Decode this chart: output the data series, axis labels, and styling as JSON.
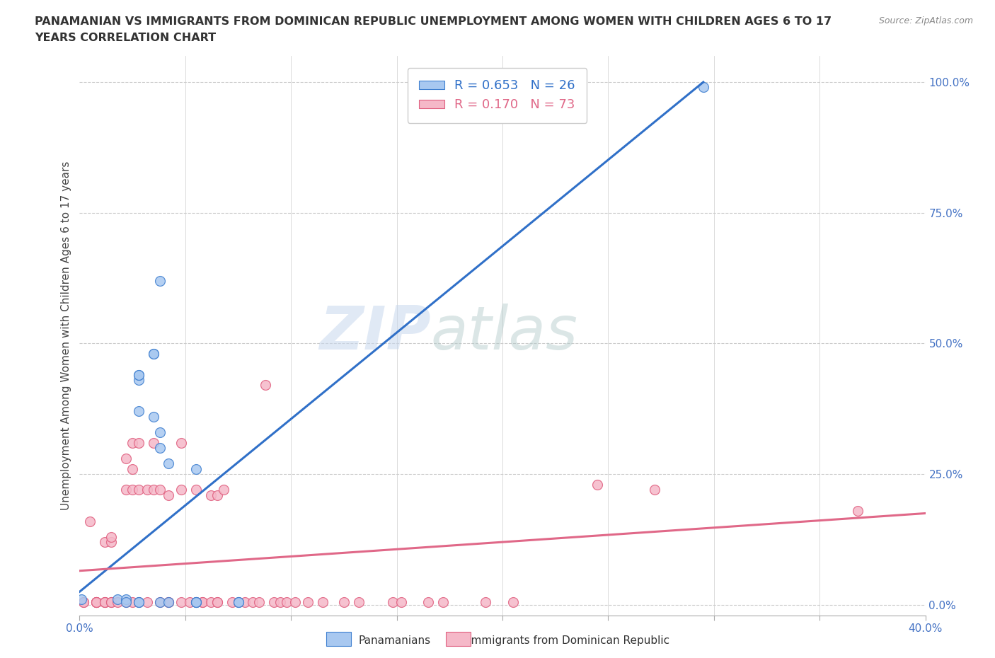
{
  "title_line1": "PANAMANIAN VS IMMIGRANTS FROM DOMINICAN REPUBLIC UNEMPLOYMENT AMONG WOMEN WITH CHILDREN AGES 6 TO 17",
  "title_line2": "YEARS CORRELATION CHART",
  "source": "Source: ZipAtlas.com",
  "ylabel": "Unemployment Among Women with Children Ages 6 to 17 years",
  "legend_blue_r": "0.653",
  "legend_blue_n": "26",
  "legend_pink_r": "0.170",
  "legend_pink_n": "73",
  "blue_scatter_x": [
    0.001,
    0.018,
    0.022,
    0.022,
    0.028,
    0.028,
    0.028,
    0.028,
    0.028,
    0.028,
    0.035,
    0.035,
    0.035,
    0.038,
    0.038,
    0.038,
    0.038,
    0.042,
    0.042,
    0.055,
    0.055,
    0.055,
    0.055,
    0.075,
    0.075,
    0.295
  ],
  "blue_scatter_y": [
    0.01,
    0.01,
    0.01,
    0.005,
    0.005,
    0.005,
    0.43,
    0.44,
    0.44,
    0.37,
    0.48,
    0.48,
    0.36,
    0.005,
    0.3,
    0.33,
    0.62,
    0.005,
    0.27,
    0.005,
    0.005,
    0.005,
    0.26,
    0.005,
    0.005,
    0.99
  ],
  "pink_scatter_x": [
    0.002,
    0.002,
    0.005,
    0.008,
    0.008,
    0.008,
    0.008,
    0.008,
    0.012,
    0.012,
    0.012,
    0.012,
    0.015,
    0.015,
    0.015,
    0.015,
    0.018,
    0.022,
    0.022,
    0.022,
    0.025,
    0.025,
    0.025,
    0.025,
    0.028,
    0.028,
    0.028,
    0.032,
    0.032,
    0.035,
    0.035,
    0.038,
    0.038,
    0.042,
    0.042,
    0.042,
    0.048,
    0.048,
    0.048,
    0.052,
    0.055,
    0.055,
    0.058,
    0.058,
    0.062,
    0.062,
    0.065,
    0.065,
    0.065,
    0.068,
    0.072,
    0.075,
    0.078,
    0.082,
    0.085,
    0.088,
    0.092,
    0.095,
    0.098,
    0.102,
    0.108,
    0.115,
    0.125,
    0.132,
    0.148,
    0.152,
    0.165,
    0.172,
    0.192,
    0.205,
    0.245,
    0.272,
    0.368
  ],
  "pink_scatter_y": [
    0.005,
    0.005,
    0.16,
    0.005,
    0.005,
    0.005,
    0.005,
    0.005,
    0.005,
    0.005,
    0.005,
    0.12,
    0.005,
    0.12,
    0.13,
    0.005,
    0.005,
    0.005,
    0.22,
    0.28,
    0.005,
    0.26,
    0.31,
    0.22,
    0.005,
    0.22,
    0.31,
    0.005,
    0.22,
    0.22,
    0.31,
    0.005,
    0.22,
    0.005,
    0.005,
    0.21,
    0.005,
    0.22,
    0.31,
    0.005,
    0.005,
    0.22,
    0.005,
    0.005,
    0.005,
    0.21,
    0.005,
    0.21,
    0.005,
    0.22,
    0.005,
    0.005,
    0.005,
    0.005,
    0.005,
    0.42,
    0.005,
    0.005,
    0.005,
    0.005,
    0.005,
    0.005,
    0.005,
    0.005,
    0.005,
    0.005,
    0.005,
    0.005,
    0.005,
    0.005,
    0.23,
    0.22,
    0.18
  ],
  "blue_color": "#A8C8F0",
  "pink_color": "#F5B8C8",
  "blue_edge_color": "#4080D0",
  "pink_edge_color": "#E06080",
  "blue_line_color": "#3070C8",
  "pink_line_color": "#E06888",
  "watermark_text": "ZIP",
  "watermark_text2": "atlas",
  "background_color": "#ffffff",
  "xlim": [
    0.0,
    0.4
  ],
  "ylim": [
    -0.02,
    1.05
  ],
  "right_yticks": [
    0.0,
    0.25,
    0.5,
    0.75,
    1.0
  ],
  "right_yticklabels": [
    "0.0%",
    "25.0%",
    "50.0%",
    "75.0%",
    "100.0%"
  ],
  "xlabel_ticks": [
    0.0,
    0.05,
    0.1,
    0.15,
    0.2,
    0.25,
    0.3,
    0.35,
    0.4
  ],
  "xlabel_labels": [
    "0.0%",
    "",
    "",
    "",
    "",
    "",
    "",
    "",
    "40.0%"
  ],
  "grid_yticks": [
    0.0,
    0.25,
    0.5,
    0.75,
    1.0
  ],
  "grid_xticks": [
    0.05,
    0.1,
    0.15,
    0.2,
    0.25,
    0.3,
    0.35
  ]
}
